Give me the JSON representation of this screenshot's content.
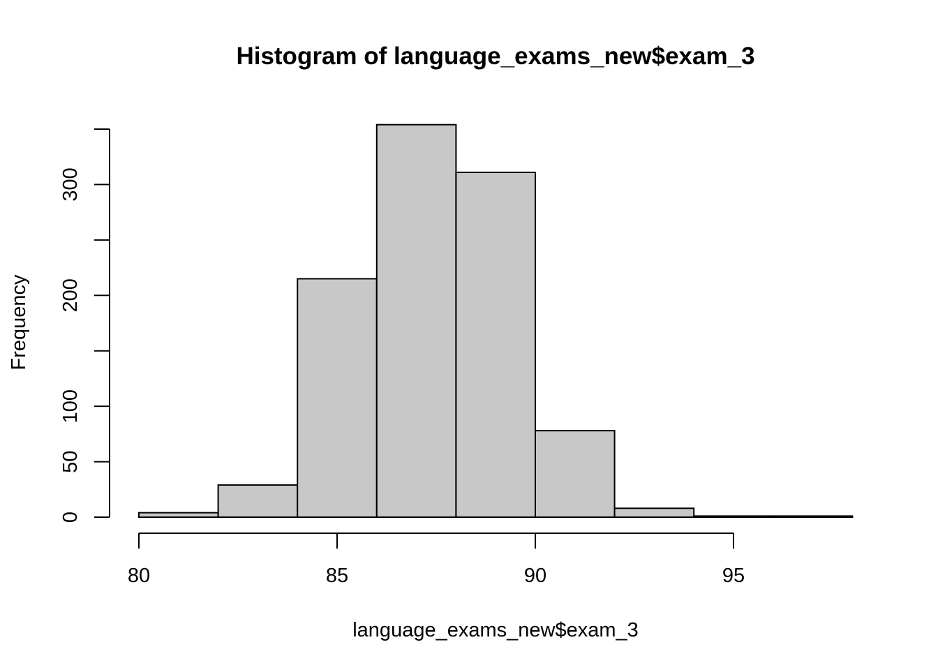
{
  "chart_data": {
    "type": "bar",
    "title": "Histogram of language_exams_new$exam_3",
    "xlabel": "language_exams_new$exam_3",
    "ylabel": "Frequency",
    "bins": [
      {
        "start": 80,
        "end": 82,
        "count": 4
      },
      {
        "start": 82,
        "end": 84,
        "count": 29
      },
      {
        "start": 84,
        "end": 86,
        "count": 215
      },
      {
        "start": 86,
        "end": 88,
        "count": 354
      },
      {
        "start": 88,
        "end": 90,
        "count": 311
      },
      {
        "start": 90,
        "end": 92,
        "count": 78
      },
      {
        "start": 92,
        "end": 94,
        "count": 8
      },
      {
        "start": 94,
        "end": 96,
        "count": 1
      },
      {
        "start": 96,
        "end": 98,
        "count": 1
      }
    ],
    "xlim": [
      80,
      98
    ],
    "ylim": [
      0,
      350
    ],
    "x_ticks": [
      80,
      85,
      90,
      95
    ],
    "y_ticks": [
      0,
      50,
      100,
      150,
      200,
      250,
      300,
      350
    ],
    "y_tick_labels": [
      "0",
      "50",
      "100",
      "",
      "200",
      "",
      "300",
      ""
    ],
    "grid": false,
    "colors": {
      "bar_fill": "#c8c8c8",
      "bar_stroke": "#000000"
    }
  }
}
